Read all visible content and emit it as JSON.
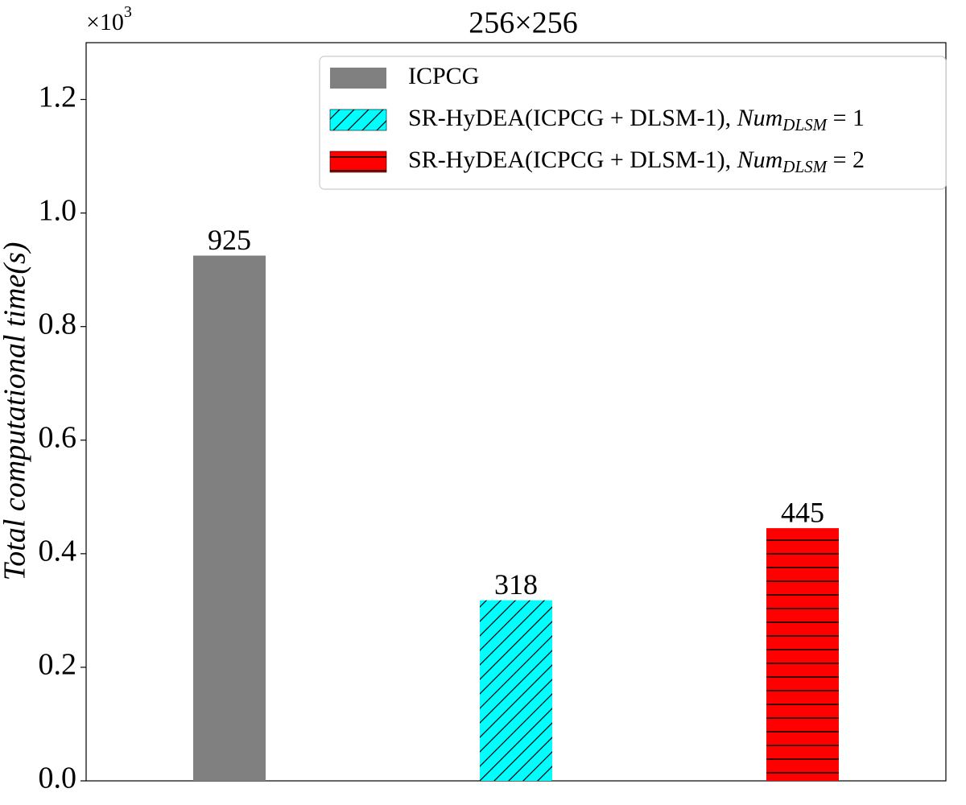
{
  "chart_data": {
    "type": "bar",
    "title": "256×256",
    "y_label": "Total computational time(s)",
    "y_offset_label": "×10",
    "y_offset_exponent": "3",
    "categories": [
      null,
      null,
      null
    ],
    "series": [
      {
        "name": "ICPCG",
        "color": "#808080",
        "hatch": null,
        "values": [
          925,
          null,
          null
        ],
        "value_labels": [
          "925",
          null,
          null
        ]
      },
      {
        "name": "SR-HyDEA(ICPCG + DLSM-1), ",
        "name_italic": "Num",
        "name_subscript": "DLSM",
        "name_suffix": " = 1",
        "color": "#00ffff",
        "hatch": "/",
        "values": [
          null,
          318,
          null
        ],
        "value_labels": [
          null,
          "318",
          null
        ]
      },
      {
        "name": "SR-HyDEA(ICPCG + DLSM-1), ",
        "name_italic": "Num",
        "name_subscript": "DLSM",
        "name_suffix": " = 2",
        "color": "#ff0000",
        "hatch": "-",
        "values": [
          null,
          null,
          445
        ],
        "value_labels": [
          null,
          null,
          "445"
        ]
      }
    ],
    "ylim": [
      0,
      1300
    ],
    "yticks": [
      {
        "value": 0,
        "label": "0.0"
      },
      {
        "value": 200,
        "label": "0.2"
      },
      {
        "value": 400,
        "label": "0.4"
      },
      {
        "value": 600,
        "label": "0.6"
      },
      {
        "value": 800,
        "label": "0.8"
      },
      {
        "value": 1000,
        "label": "1.0"
      },
      {
        "value": 1200,
        "label": "1.2"
      }
    ],
    "grid": false,
    "legend": "upper right"
  }
}
